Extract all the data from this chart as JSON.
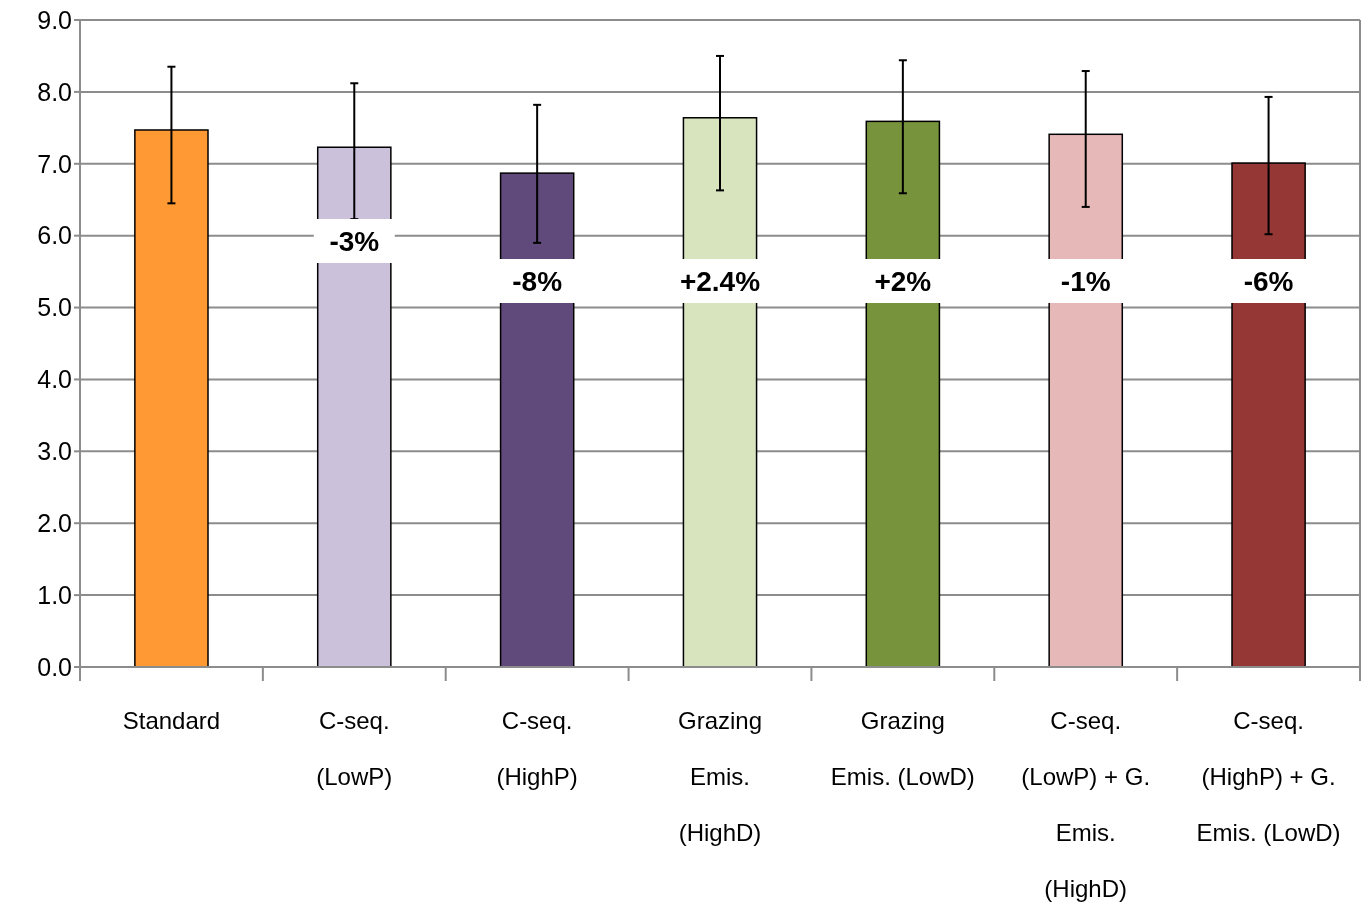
{
  "chart_data": {
    "type": "bar",
    "categories": [
      "Standard",
      "C-seq.\n(LowP)",
      "C-seq.\n(HighP)",
      "Grazing\nEmis.\n(HighD)",
      "Grazing\nEmis. (LowD)",
      "C-seq.\n(LowP) + G.\nEmis.\n(HighD)",
      "C-seq.\n(HighP) + G.\nEmis. (LowD)"
    ],
    "values": [
      7.47,
      7.23,
      6.87,
      7.64,
      7.59,
      7.41,
      7.01
    ],
    "colors": [
      "#ff9933",
      "#ccc1da",
      "#604a7b",
      "#d7e4bd",
      "#77933c",
      "#e6b9b8",
      "#953735"
    ],
    "errors": [
      [
        6.45,
        8.35
      ],
      [
        6.23,
        8.12
      ],
      [
        5.9,
        7.82
      ],
      [
        6.63,
        8.5
      ],
      [
        6.59,
        8.44
      ],
      [
        6.4,
        8.29
      ],
      [
        6.02,
        7.93
      ]
    ],
    "ylim": [
      0,
      9
    ],
    "yticks": [
      {
        "value": 0,
        "label": "0.0"
      },
      {
        "value": 1,
        "label": "1.0"
      },
      {
        "value": 2,
        "label": "2.0"
      },
      {
        "value": 3,
        "label": "3.0"
      },
      {
        "value": 4,
        "label": "4.0"
      },
      {
        "value": 5,
        "label": "5.0"
      },
      {
        "value": 6,
        "label": "6.0"
      },
      {
        "value": 7,
        "label": "7.0"
      },
      {
        "value": 8,
        "label": "8.0"
      },
      {
        "value": 9,
        "label": "9.0"
      }
    ],
    "grid": "y",
    "annotations": [
      "-3%",
      "-8%",
      "+2.4%",
      "+2%",
      "-1%",
      "-6%"
    ]
  }
}
